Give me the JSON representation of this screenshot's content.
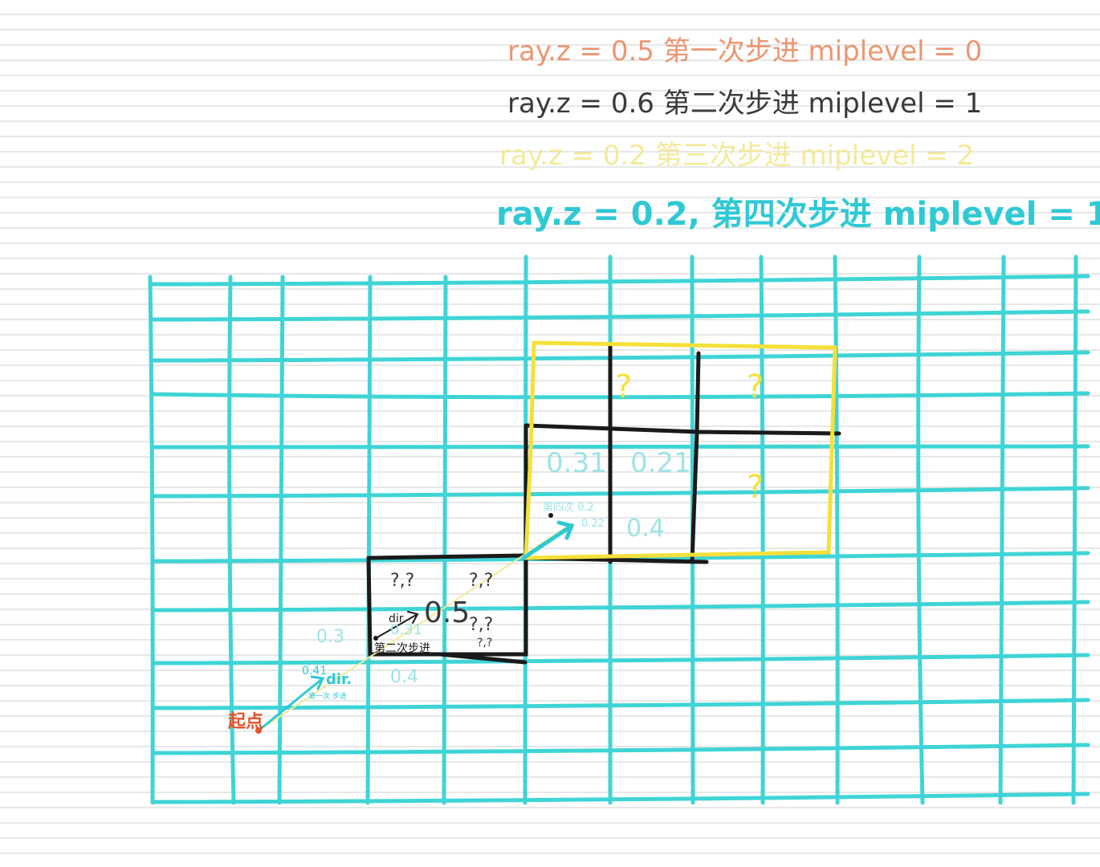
{
  "colors": {
    "paper_line": "#cfcfcf",
    "grid": "#3fd4d6",
    "black": "#1a1a1a",
    "yellow": "#f5e03a",
    "orange": "#e9865a",
    "gray_text": "#3a3a3a",
    "pale_yellow_text": "#f3ea9a",
    "cyan_text": "#2fc9d4",
    "faint_cyan_text": "#9fe3e6",
    "start_red": "#e2552c"
  },
  "notes": {
    "step1": "ray.z = 0.5   第一次步进   miplevel = 0",
    "step2": "ray.z = 0.6   第二次步进   miplevel = 1",
    "step3": "ray.z = 0.2   第三次步进   miplevel = 2",
    "step4": "ray.z = 0.2,  第四次步进 miplevel = 1."
  },
  "cells": {
    "q1": "?",
    "q2": "?",
    "q3": "?",
    "v031": "0.31",
    "v021": "0.21",
    "v04_upper": "0.4",
    "v4th": "第四次 0.2",
    "v022": "0.22",
    "qq1": "?,?",
    "qq2": "?,?",
    "qq3": "?,?",
    "qq4": "?,?",
    "v05": "0.5",
    "v03": "0.3",
    "v031_lower": "0.31",
    "v041": "0.41",
    "v04_lower": "0.4"
  },
  "labels": {
    "dir_upper": "dir.",
    "dir_lower": "dir.",
    "second_step": "第二次步进",
    "first_step_small": "第一次 步进",
    "start": "起点"
  }
}
